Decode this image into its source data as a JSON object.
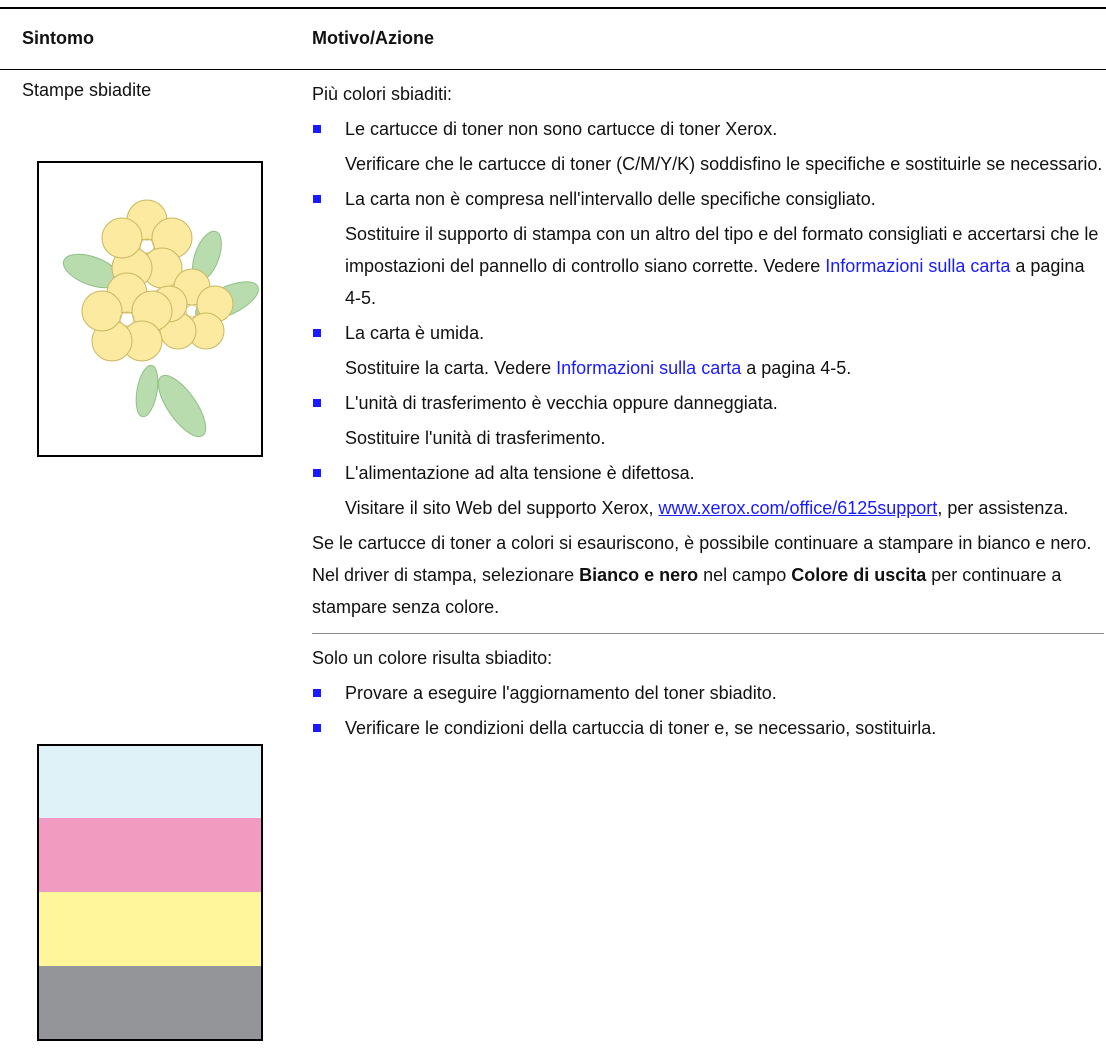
{
  "header": {
    "col1": "Sintomo",
    "col2": "Motivo/Azione"
  },
  "row": {
    "symptom": "Stampe sbiadite",
    "sections": [
      {
        "intro": "Più colori sbiaditi:",
        "items": [
          {
            "cause": "Le cartucce di toner non sono cartucce di toner Xerox.",
            "action": [
              {
                "text": "Verificare che le cartucce di toner (C/M/Y/K) soddisfino le specifiche e sostituirle se necessario."
              }
            ]
          },
          {
            "cause": "La carta non è compresa nell'intervallo delle specifiche consigliato.",
            "action": [
              {
                "text": "Sostituire il supporto di stampa con un altro del tipo e del formato consigliati e accertarsi che le impostazioni del pannello di controllo siano corrette. Vedere "
              },
              {
                "text": "Informazioni sulla carta",
                "style": "xref"
              },
              {
                "text": " a pagina 4-5."
              }
            ]
          },
          {
            "cause": "La carta è umida.",
            "action": [
              {
                "text": "Sostituire la carta. Vedere "
              },
              {
                "text": "Informazioni sulla carta",
                "style": "xref"
              },
              {
                "text": " a pagina 4-5."
              }
            ]
          },
          {
            "cause": "L'unità di trasferimento è vecchia oppure danneggiata.",
            "action": [
              {
                "text": "Sostituire l'unità di trasferimento."
              }
            ]
          },
          {
            "cause": "L'alimentazione ad alta tensione è difettosa.",
            "action": [
              {
                "text": "Visitare il sito Web del supporto Xerox, "
              },
              {
                "text": "www.xerox.com/office/6125support",
                "style": "url"
              },
              {
                "text": ", per assistenza."
              }
            ]
          }
        ],
        "note": [
          {
            "text": "Se le cartucce di toner a colori si esauriscono, è possibile continuare a stampare in bianco e nero. Nel driver di stampa, selezionare "
          },
          {
            "text": "Bianco e nero",
            "style": "bold"
          },
          {
            "text": " nel campo "
          },
          {
            "text": "Colore di uscita",
            "style": "bold"
          },
          {
            "text": " per continuare a stampare senza colore."
          }
        ]
      },
      {
        "intro": "Solo un colore risulta sbiadito:",
        "items": [
          {
            "cause": "Provare a eseguire l'aggiornamento del toner sbiadito."
          },
          {
            "cause": "Verificare le condizioni della cartuccia di toner e, se necessario, sostituirla."
          }
        ]
      }
    ]
  }
}
